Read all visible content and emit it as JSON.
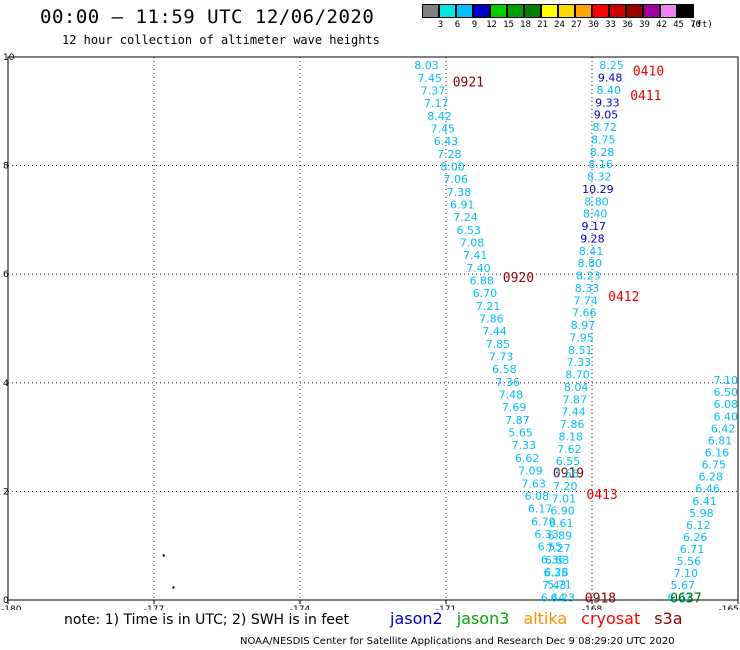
{
  "header": {
    "title": "00:00 – 11:59 UTC 12/06/2020",
    "subtitle": "12 hour collection of altimeter wave heights"
  },
  "colorbar": {
    "labels": [
      "3",
      "6",
      "9",
      "12",
      "15",
      "18",
      "21",
      "24",
      "27",
      "30",
      "33",
      "36",
      "39",
      "42",
      "45",
      "70"
    ],
    "unit": "(ft)",
    "colors": [
      "#808080",
      "#00e5e5",
      "#00bfff",
      "#0000cd",
      "#00cc00",
      "#00a000",
      "#008000",
      "#ffff00",
      "#ffd700",
      "#ffa500",
      "#ff0000",
      "#cc0000",
      "#990000",
      "#a000a0",
      "#ee82ee",
      "#000000"
    ]
  },
  "chart_data": {
    "type": "scatter",
    "title": "12 hour collection of altimeter wave heights",
    "x_ticks": [
      "-180",
      "-177",
      "-174",
      "-171",
      "-168",
      "-165"
    ],
    "y_ticks": [
      "0",
      "2",
      "4",
      "6",
      "8",
      "10"
    ],
    "xlim": [
      -180,
      -165
    ],
    "ylim": [
      0,
      10
    ],
    "grid": true,
    "value_colors": [
      {
        "min": 0,
        "max": 9,
        "color": "#00bfff"
      },
      {
        "min": 9,
        "max": 12,
        "color": "#0000cd"
      }
    ],
    "tracks": [
      {
        "lon_start": -171.4,
        "lat_start": 9.85,
        "lon_end": -168.6,
        "lat_end": 0.05,
        "values": [
          8.03,
          7.45,
          7.37,
          7.17,
          8.42,
          7.45,
          6.43,
          7.28,
          8.0,
          7.06,
          7.38,
          6.91,
          7.24,
          6.53,
          7.08,
          7.41,
          7.4,
          6.88,
          6.7,
          7.21,
          7.86,
          7.44,
          7.85,
          7.73,
          6.58,
          7.36,
          7.48,
          7.69,
          7.87,
          5.65,
          7.33,
          6.62,
          7.09,
          7.63,
          6.08,
          6.17,
          6.79,
          6.33,
          6.55,
          6.36,
          6.28,
          5.71,
          6.23
        ],
        "times": [
          {
            "label": "0921",
            "lat": 9.55,
            "color": "#8b0000"
          },
          {
            "label": "0920",
            "lat": 5.95,
            "color": "#8b0000"
          },
          {
            "label": "0919",
            "lat": 2.35,
            "color": "#8b0000"
          },
          {
            "label": "0918",
            "lat": 0.05,
            "color": "#8b0000"
          }
        ]
      },
      {
        "lon_start": -167.6,
        "lat_start": 9.85,
        "lon_end": -168.8,
        "lat_end": 0.05,
        "values": [
          8.25,
          9.48,
          8.4,
          9.33,
          9.05,
          8.72,
          8.75,
          8.28,
          8.16,
          8.32,
          10.29,
          8.8,
          8.4,
          9.17,
          9.28,
          8.41,
          8.8,
          8.23,
          8.33,
          7.74,
          7.66,
          8.97,
          7.95,
          8.51,
          7.33,
          8.7,
          8.04,
          7.87,
          7.44,
          7.86,
          8.18,
          7.62,
          6.55,
          7.56,
          7.2,
          7.01,
          6.9,
          6.61,
          6.89,
          7.27,
          6.63,
          6.35,
          7.43,
          6.44
        ],
        "times": [
          {
            "label": "0410",
            "lat": 9.75,
            "color": "#ee0000"
          },
          {
            "label": "0411",
            "lat": 9.3,
            "color": "#ee0000"
          },
          {
            "label": "0412",
            "lat": 5.6,
            "color": "#ee0000"
          },
          {
            "label": "0413",
            "lat": 1.95,
            "color": "#ee0000"
          }
        ]
      },
      {
        "lon_start": -165.05,
        "lat_start": 4.05,
        "lon_end": -166.2,
        "lat_end": 0.05,
        "values": [
          7.1,
          6.5,
          6.08,
          6.4,
          6.42,
          6.81,
          6.16,
          6.75,
          6.28,
          6.46,
          6.41,
          5.98,
          6.12,
          6.26,
          6.71,
          5.56,
          7.1,
          5.67,
          6.02
        ],
        "times": [
          {
            "label": "0637",
            "lat": 0.05,
            "color": "#006400"
          }
        ]
      }
    ],
    "stray_points": [
      {
        "lon": -176.8,
        "lat": 0.82
      },
      {
        "lon": -176.6,
        "lat": 0.23
      }
    ]
  },
  "legend": {
    "note": "note:  1) Time is in UTC;  2) SWH is in feet",
    "satellites": [
      {
        "name": "jason2",
        "color": "#0000cd"
      },
      {
        "name": "jason3",
        "color": "#00aa00"
      },
      {
        "name": "altika",
        "color": "#ff8c00"
      },
      {
        "name": "cryosat",
        "color": "#ff0000"
      },
      {
        "name": "s3a",
        "color": "#8b0000"
      }
    ]
  },
  "footer": "NOAA/NESDIS Center for Satellite Applications and Research    Dec  9 08:29:20 UTC 2020"
}
